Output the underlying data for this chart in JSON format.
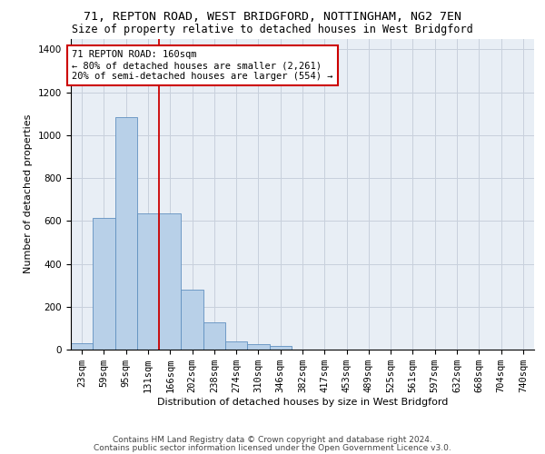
{
  "title_line1": "71, REPTON ROAD, WEST BRIDGFORD, NOTTINGHAM, NG2 7EN",
  "title_line2": "Size of property relative to detached houses in West Bridgford",
  "xlabel": "Distribution of detached houses by size in West Bridgford",
  "ylabel": "Number of detached properties",
  "bin_labels": [
    "23sqm",
    "59sqm",
    "95sqm",
    "131sqm",
    "166sqm",
    "202sqm",
    "238sqm",
    "274sqm",
    "310sqm",
    "346sqm",
    "382sqm",
    "417sqm",
    "453sqm",
    "489sqm",
    "525sqm",
    "561sqm",
    "597sqm",
    "632sqm",
    "668sqm",
    "704sqm",
    "740sqm"
  ],
  "bar_heights": [
    30,
    615,
    1085,
    635,
    635,
    280,
    125,
    40,
    25,
    15,
    0,
    0,
    0,
    0,
    0,
    0,
    0,
    0,
    0,
    0,
    0
  ],
  "bar_color": "#b8d0e8",
  "bar_edge_color": "#6090c0",
  "red_line_color": "#cc0000",
  "annotation_text": "71 REPTON ROAD: 160sqm\n← 80% of detached houses are smaller (2,261)\n20% of semi-detached houses are larger (554) →",
  "annotation_box_color": "#cc0000",
  "ylim": [
    0,
    1450
  ],
  "yticks": [
    0,
    200,
    400,
    600,
    800,
    1000,
    1200,
    1400
  ],
  "grid_color": "#c8d0dc",
  "background_color": "#e8eef5",
  "footer_line1": "Contains HM Land Registry data © Crown copyright and database right 2024.",
  "footer_line2": "Contains public sector information licensed under the Open Government Licence v3.0.",
  "title_fontsize": 9.5,
  "subtitle_fontsize": 8.5,
  "axis_label_fontsize": 8,
  "tick_fontsize": 7.5,
  "annotation_fontsize": 7.5,
  "footer_fontsize": 6.5
}
